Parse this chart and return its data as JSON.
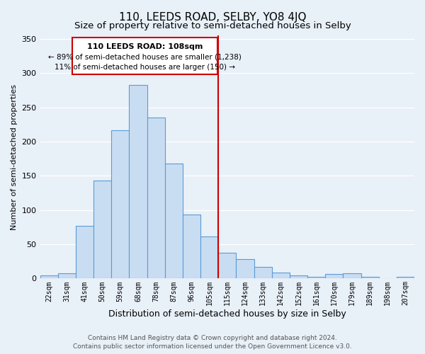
{
  "title": "110, LEEDS ROAD, SELBY, YO8 4JQ",
  "subtitle": "Size of property relative to semi-detached houses in Selby",
  "xlabel": "Distribution of semi-detached houses by size in Selby",
  "ylabel": "Number of semi-detached properties",
  "bar_labels": [
    "22sqm",
    "31sqm",
    "41sqm",
    "50sqm",
    "59sqm",
    "68sqm",
    "78sqm",
    "87sqm",
    "96sqm",
    "105sqm",
    "115sqm",
    "124sqm",
    "133sqm",
    "142sqm",
    "152sqm",
    "161sqm",
    "170sqm",
    "179sqm",
    "189sqm",
    "198sqm",
    "207sqm"
  ],
  "bar_values": [
    5,
    8,
    77,
    143,
    216,
    283,
    235,
    168,
    93,
    61,
    38,
    28,
    17,
    9,
    5,
    3,
    7,
    8,
    3,
    0,
    2
  ],
  "bar_color": "#c9ddf2",
  "bar_edge_color": "#5b9bd5",
  "vline_color": "#cc0000",
  "annotation_title": "110 LEEDS ROAD: 108sqm",
  "annotation_line1": "← 89% of semi-detached houses are smaller (1,238)",
  "annotation_line2": "11% of semi-detached houses are larger (150) →",
  "annotation_box_color": "#cc0000",
  "annotation_fill": "#ffffff",
  "ylim": [
    0,
    355
  ],
  "background_color": "#e8f0f8",
  "grid_color": "#ffffff",
  "footer1": "Contains HM Land Registry data © Crown copyright and database right 2024.",
  "footer2": "Contains public sector information licensed under the Open Government Licence v3.0.",
  "title_fontsize": 11,
  "subtitle_fontsize": 9.5,
  "xlabel_fontsize": 9,
  "ylabel_fontsize": 8,
  "tick_fontsize": 7,
  "footer_fontsize": 6.5
}
